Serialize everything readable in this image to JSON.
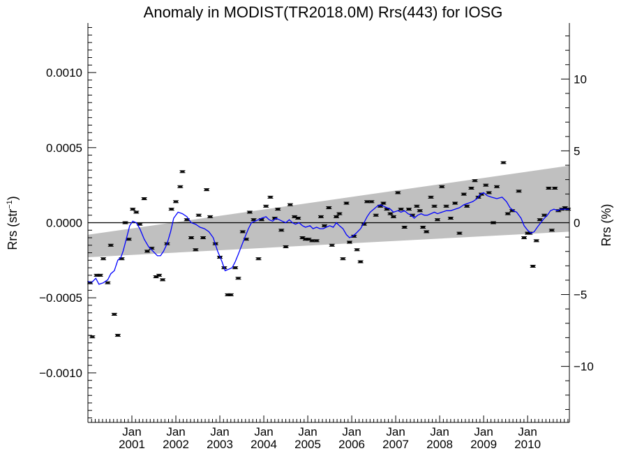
{
  "chart_data": {
    "type": "scatter",
    "title": "Anomaly in MODIST(TR2018.0M) Rrs(443) for IOSG",
    "ylabel": {
      "main": "Rrs (str",
      "sup": "−1",
      "tail": ")"
    },
    "ylabel_right": "Rrs (%)",
    "xlim": [
      2000.0,
      2010.95
    ],
    "ylim": [
      -0.00133,
      0.00133
    ],
    "y_right_lim": [
      -13.9,
      13.9
    ],
    "x_ticks": [
      {
        "x": 2001.0,
        "top": "Jan",
        "bottom": "2001"
      },
      {
        "x": 2002.0,
        "top": "Jan",
        "bottom": "2002"
      },
      {
        "x": 2003.0,
        "top": "Jan",
        "bottom": "2003"
      },
      {
        "x": 2004.0,
        "top": "Jan",
        "bottom": "2004"
      },
      {
        "x": 2005.0,
        "top": "Jan",
        "bottom": "2005"
      },
      {
        "x": 2006.0,
        "top": "Jan",
        "bottom": "2006"
      },
      {
        "x": 2007.0,
        "top": "Jan",
        "bottom": "2007"
      },
      {
        "x": 2008.0,
        "top": "Jan",
        "bottom": "2008"
      },
      {
        "x": 2009.0,
        "top": "Jan",
        "bottom": "2009"
      },
      {
        "x": 2010.0,
        "top": "Jan",
        "bottom": "2010"
      }
    ],
    "y_ticks_left": [
      {
        "v": 0.001,
        "label": "0.0010"
      },
      {
        "v": 0.0005,
        "label": "0.0005"
      },
      {
        "v": 0.0,
        "label": "0.0000"
      },
      {
        "v": -0.0005,
        "label": "−0.0005"
      },
      {
        "v": -0.001,
        "label": "−0.0010"
      }
    ],
    "y_ticks_right": [
      {
        "v": 10,
        "label": "10"
      },
      {
        "v": 5,
        "label": "5"
      },
      {
        "v": 0,
        "label": "0"
      },
      {
        "v": -5,
        "label": "−5"
      },
      {
        "v": -10,
        "label": "−10"
      }
    ],
    "zero_line": 0.0,
    "trend_band": {
      "x": [
        2000.0,
        2010.95
      ],
      "lower": [
        -0.00023,
        -6e-05
      ],
      "upper": [
        -8e-05,
        0.00038
      ],
      "color": "#c0c0c0"
    },
    "points": [
      [
        2000.05,
        -0.0004
      ],
      [
        2000.1,
        -0.00076
      ],
      [
        2000.2,
        -0.00035
      ],
      [
        2000.28,
        -0.00035
      ],
      [
        2000.35,
        -0.00024
      ],
      [
        2000.45,
        -0.0004
      ],
      [
        2000.52,
        -0.00015
      ],
      [
        2000.6,
        -0.00061
      ],
      [
        2000.68,
        -0.00075
      ],
      [
        2000.77,
        -0.00024
      ],
      [
        2000.85,
        0.0
      ],
      [
        2000.93,
        -0.00011
      ],
      [
        2001.02,
        9e-05
      ],
      [
        2001.1,
        7e-05
      ],
      [
        2001.18,
        -1e-05
      ],
      [
        2001.28,
        0.00016
      ],
      [
        2001.35,
        -0.00019
      ],
      [
        2001.45,
        -0.00017
      ],
      [
        2001.55,
        -0.00036
      ],
      [
        2001.62,
        -0.00035
      ],
      [
        2001.7,
        -0.00038
      ],
      [
        2001.8,
        -0.00014
      ],
      [
        2001.9,
        9e-05
      ],
      [
        2002.0,
        0.00014
      ],
      [
        2002.1,
        0.00024
      ],
      [
        2002.15,
        0.00034
      ],
      [
        2002.25,
        2e-05
      ],
      [
        2002.35,
        -0.0001
      ],
      [
        2002.45,
        -0.00018
      ],
      [
        2002.52,
        5e-05
      ],
      [
        2002.62,
        -0.0001
      ],
      [
        2002.7,
        0.00022
      ],
      [
        2002.78,
        4e-05
      ],
      [
        2002.9,
        -0.00014
      ],
      [
        2003.0,
        -0.00023
      ],
      [
        2003.1,
        -0.0003
      ],
      [
        2003.18,
        -0.00048
      ],
      [
        2003.25,
        -0.00048
      ],
      [
        2003.35,
        -0.0003
      ],
      [
        2003.42,
        -0.00037
      ],
      [
        2003.52,
        -6e-05
      ],
      [
        2003.6,
        -0.00011
      ],
      [
        2003.68,
        7e-05
      ],
      [
        2003.77,
        2e-05
      ],
      [
        2003.88,
        -0.00024
      ],
      [
        2003.95,
        2e-05
      ],
      [
        2004.05,
        0.00011
      ],
      [
        2004.15,
        0.00017
      ],
      [
        2004.25,
        3e-05
      ],
      [
        2004.32,
        9e-05
      ],
      [
        2004.4,
        -5e-05
      ],
      [
        2004.5,
        -0.00016
      ],
      [
        2004.6,
        0.00012
      ],
      [
        2004.7,
        4e-05
      ],
      [
        2004.78,
        3e-05
      ],
      [
        2004.88,
        -0.0001
      ],
      [
        2004.95,
        -0.00011
      ],
      [
        2005.02,
        -0.00011
      ],
      [
        2005.1,
        -0.00012
      ],
      [
        2005.2,
        -0.00012
      ],
      [
        2005.3,
        4e-05
      ],
      [
        2005.38,
        -2e-05
      ],
      [
        2005.48,
        0.0001
      ],
      [
        2005.55,
        -0.00015
      ],
      [
        2005.65,
        4e-05
      ],
      [
        2005.72,
        6e-05
      ],
      [
        2005.8,
        -0.00024
      ],
      [
        2005.88,
        0.00013
      ],
      [
        2005.95,
        -0.00013
      ],
      [
        2006.05,
        -9e-05
      ],
      [
        2006.12,
        -0.00018
      ],
      [
        2006.2,
        -0.00026
      ],
      [
        2006.28,
        -1e-05
      ],
      [
        2006.35,
        0.00014
      ],
      [
        2006.45,
        0.00014
      ],
      [
        2006.55,
        5e-05
      ],
      [
        2006.65,
        0.00011
      ],
      [
        2006.72,
        0.00013
      ],
      [
        2006.8,
        9e-05
      ],
      [
        2006.88,
        6e-05
      ],
      [
        2006.95,
        4e-05
      ],
      [
        2007.05,
        0.0002
      ],
      [
        2007.12,
        9e-05
      ],
      [
        2007.2,
        -3e-05
      ],
      [
        2007.3,
        9e-05
      ],
      [
        2007.38,
        5e-05
      ],
      [
        2007.48,
        0.00011
      ],
      [
        2007.55,
        8e-05
      ],
      [
        2007.62,
        -3e-05
      ],
      [
        2007.7,
        -6e-05
      ],
      [
        2007.8,
        0.00017
      ],
      [
        2007.88,
        0.00011
      ],
      [
        2007.95,
        2e-05
      ],
      [
        2008.05,
        0.00024
      ],
      [
        2008.15,
        0.00011
      ],
      [
        2008.25,
        3e-05
      ],
      [
        2008.35,
        0.00013
      ],
      [
        2008.45,
        -7e-05
      ],
      [
        2008.55,
        0.00019
      ],
      [
        2008.62,
        0.00011
      ],
      [
        2008.72,
        0.00023
      ],
      [
        2008.8,
        0.00028
      ],
      [
        2008.88,
        0.00017
      ],
      [
        2008.95,
        0.00019
      ],
      [
        2009.05,
        0.00025
      ],
      [
        2009.12,
        0.0002
      ],
      [
        2009.22,
        0.0
      ],
      [
        2009.3,
        0.00024
      ],
      [
        2009.45,
        0.0004
      ],
      [
        2009.55,
        6e-05
      ],
      [
        2009.65,
        8e-05
      ],
      [
        2009.8,
        0.00021
      ],
      [
        2009.92,
        -0.0001
      ],
      [
        2010.0,
        -7e-05
      ],
      [
        2010.05,
        -7e-05
      ],
      [
        2010.12,
        -0.00029
      ],
      [
        2010.2,
        -0.00012
      ],
      [
        2010.28,
        2e-05
      ],
      [
        2010.38,
        5e-05
      ],
      [
        2010.48,
        0.00023
      ],
      [
        2010.55,
        -5e-05
      ],
      [
        2010.62,
        0.00023
      ],
      [
        2010.7,
        8e-05
      ],
      [
        2010.78,
        9e-05
      ],
      [
        2010.85,
        0.0001
      ],
      [
        2010.92,
        9e-05
      ]
    ],
    "smooth_line": {
      "color": "#0000ff",
      "points": [
        [
          2000.0,
          -0.00039
        ],
        [
          2000.08,
          -0.0004
        ],
        [
          2000.18,
          -0.00037
        ],
        [
          2000.25,
          -0.00041
        ],
        [
          2000.35,
          -0.0004
        ],
        [
          2000.45,
          -0.00038
        ],
        [
          2000.52,
          -0.00034
        ],
        [
          2000.6,
          -0.00032
        ],
        [
          2000.68,
          -0.00025
        ],
        [
          2000.75,
          -0.00023
        ],
        [
          2000.8,
          -0.00019
        ],
        [
          2000.88,
          -0.0001
        ],
        [
          2000.95,
          -2e-05
        ],
        [
          2001.02,
          1e-05
        ],
        [
          2001.1,
          0.0
        ],
        [
          2001.18,
          -4e-05
        ],
        [
          2001.28,
          -0.00011
        ],
        [
          2001.38,
          -0.00016
        ],
        [
          2001.48,
          -0.00019
        ],
        [
          2001.58,
          -0.00022
        ],
        [
          2001.65,
          -0.00022
        ],
        [
          2001.72,
          -0.00019
        ],
        [
          2001.8,
          -0.00014
        ],
        [
          2001.88,
          -6e-05
        ],
        [
          2001.95,
          3e-05
        ],
        [
          2002.05,
          7e-05
        ],
        [
          2002.15,
          6e-05
        ],
        [
          2002.25,
          4e-05
        ],
        [
          2002.35,
          0.0
        ],
        [
          2002.45,
          -1e-05
        ],
        [
          2002.55,
          -3e-05
        ],
        [
          2002.65,
          -4e-05
        ],
        [
          2002.75,
          -6e-05
        ],
        [
          2002.85,
          -0.0001
        ],
        [
          2002.95,
          -0.00019
        ],
        [
          2003.05,
          -0.00026
        ],
        [
          2003.12,
          -0.00032
        ],
        [
          2003.2,
          -0.00031
        ],
        [
          2003.28,
          -0.0003
        ],
        [
          2003.35,
          -0.00026
        ],
        [
          2003.42,
          -0.00021
        ],
        [
          2003.5,
          -0.00015
        ],
        [
          2003.58,
          -9e-05
        ],
        [
          2003.65,
          -4e-05
        ],
        [
          2003.72,
          0.0
        ],
        [
          2003.8,
          1e-05
        ],
        [
          2003.88,
          2e-05
        ],
        [
          2003.95,
          3e-05
        ],
        [
          2004.05,
          4e-05
        ],
        [
          2004.12,
          2e-05
        ],
        [
          2004.2,
          1e-05
        ],
        [
          2004.28,
          3e-05
        ],
        [
          2004.35,
          2e-05
        ],
        [
          2004.42,
          1e-05
        ],
        [
          2004.5,
          0.0
        ],
        [
          2004.58,
          2e-05
        ],
        [
          2004.65,
          0.0
        ],
        [
          2004.72,
          -1e-05
        ],
        [
          2004.8,
          0.0
        ],
        [
          2004.88,
          -2e-05
        ],
        [
          2004.95,
          -3e-05
        ],
        [
          2005.05,
          -2e-05
        ],
        [
          2005.12,
          -4e-05
        ],
        [
          2005.2,
          -3e-05
        ],
        [
          2005.28,
          -4e-05
        ],
        [
          2005.35,
          -4e-05
        ],
        [
          2005.42,
          -3e-05
        ],
        [
          2005.5,
          -2e-05
        ],
        [
          2005.58,
          -3e-05
        ],
        [
          2005.65,
          0.0
        ],
        [
          2005.72,
          -2e-05
        ],
        [
          2005.8,
          -4e-05
        ],
        [
          2005.88,
          -8e-05
        ],
        [
          2005.95,
          -0.0001
        ],
        [
          2006.02,
          -9e-05
        ],
        [
          2006.1,
          -7e-05
        ],
        [
          2006.2,
          -4e-05
        ],
        [
          2006.28,
          0.0
        ],
        [
          2006.35,
          4e-05
        ],
        [
          2006.42,
          7e-05
        ],
        [
          2006.5,
          9e-05
        ],
        [
          2006.58,
          0.00011
        ],
        [
          2006.65,
          0.00012
        ],
        [
          2006.72,
          0.00011
        ],
        [
          2006.8,
          0.0001
        ],
        [
          2006.88,
          9e-05
        ],
        [
          2006.95,
          7e-05
        ],
        [
          2007.05,
          8e-05
        ],
        [
          2007.12,
          7e-05
        ],
        [
          2007.2,
          8e-05
        ],
        [
          2007.28,
          6e-05
        ],
        [
          2007.35,
          5e-05
        ],
        [
          2007.42,
          3e-05
        ],
        [
          2007.5,
          5e-05
        ],
        [
          2007.58,
          6e-05
        ],
        [
          2007.65,
          5e-05
        ],
        [
          2007.72,
          5e-05
        ],
        [
          2007.8,
          6e-05
        ],
        [
          2007.88,
          7e-05
        ],
        [
          2007.95,
          6e-05
        ],
        [
          2008.05,
          7e-05
        ],
        [
          2008.15,
          8e-05
        ],
        [
          2008.25,
          8e-05
        ],
        [
          2008.35,
          9e-05
        ],
        [
          2008.45,
          0.0001
        ],
        [
          2008.55,
          0.00012
        ],
        [
          2008.65,
          0.00013
        ],
        [
          2008.75,
          0.00014
        ],
        [
          2008.85,
          0.00016
        ],
        [
          2008.92,
          0.00019
        ],
        [
          2009.0,
          0.0002
        ],
        [
          2009.08,
          0.00018
        ],
        [
          2009.18,
          0.00017
        ],
        [
          2009.3,
          0.00016
        ],
        [
          2009.42,
          0.00017
        ],
        [
          2009.52,
          0.00014
        ],
        [
          2009.6,
          0.0001
        ],
        [
          2009.68,
          8e-05
        ],
        [
          2009.75,
          7e-05
        ],
        [
          2009.85,
          3e-05
        ],
        [
          2009.92,
          -2e-05
        ],
        [
          2010.0,
          -5e-05
        ],
        [
          2010.08,
          -7e-05
        ],
        [
          2010.15,
          -6e-05
        ],
        [
          2010.22,
          -3e-05
        ],
        [
          2010.3,
          0.0
        ],
        [
          2010.38,
          3e-05
        ],
        [
          2010.45,
          5e-05
        ],
        [
          2010.52,
          8e-05
        ],
        [
          2010.6,
          9e-05
        ],
        [
          2010.68,
          8e-05
        ],
        [
          2010.75,
          9e-05
        ],
        [
          2010.82,
          9e-05
        ],
        [
          2010.9,
          9e-05
        ],
        [
          2010.95,
          9e-05
        ]
      ]
    }
  }
}
